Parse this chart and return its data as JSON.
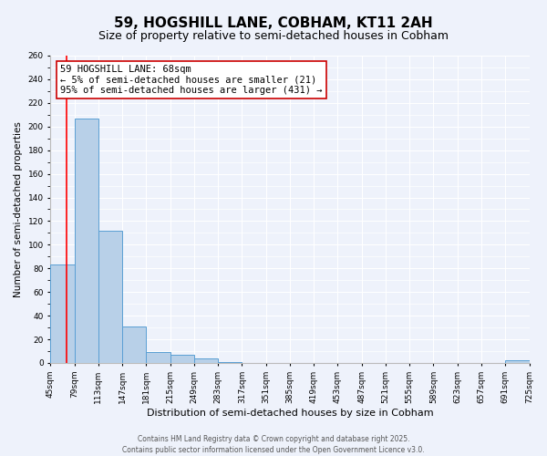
{
  "title": "59, HOGSHILL LANE, COBHAM, KT11 2AH",
  "subtitle": "Size of property relative to semi-detached houses in Cobham",
  "xlabel": "Distribution of semi-detached houses by size in Cobham",
  "ylabel": "Number of semi-detached properties",
  "bin_edges": [
    45,
    79,
    113,
    147,
    181,
    215,
    249,
    283,
    317,
    351,
    385,
    419,
    453,
    487,
    521,
    555,
    589,
    623,
    657,
    691,
    725
  ],
  "bar_heights": [
    83,
    207,
    112,
    31,
    9,
    7,
    4,
    1,
    0,
    0,
    0,
    0,
    0,
    0,
    0,
    0,
    0,
    0,
    0,
    2
  ],
  "bar_color": "#b8d0e8",
  "bar_edge_color": "#5a9fd4",
  "red_line_x": 68,
  "annotation_title": "59 HOGSHILL LANE: 68sqm",
  "annotation_line1": "← 5% of semi-detached houses are smaller (21)",
  "annotation_line2": "95% of semi-detached houses are larger (431) →",
  "annotation_box_color": "#ffffff",
  "annotation_box_edge_color": "#cc0000",
  "ylim": [
    0,
    260
  ],
  "yticks": [
    0,
    20,
    40,
    60,
    80,
    100,
    120,
    140,
    160,
    180,
    200,
    220,
    240,
    260
  ],
  "background_color": "#eef2fb",
  "grid_color": "#ffffff",
  "footer_line1": "Contains HM Land Registry data © Crown copyright and database right 2025.",
  "footer_line2": "Contains public sector information licensed under the Open Government Licence v3.0.",
  "title_fontsize": 11,
  "subtitle_fontsize": 9,
  "xlabel_fontsize": 8,
  "ylabel_fontsize": 7.5,
  "tick_fontsize": 6.5,
  "annotation_fontsize": 7.5,
  "footer_fontsize": 5.5
}
